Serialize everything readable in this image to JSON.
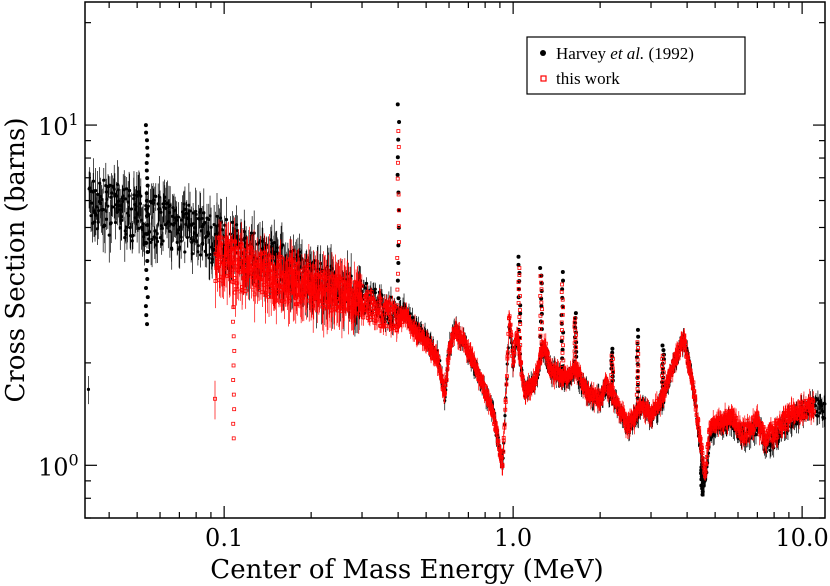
{
  "chart_data": {
    "type": "scatter",
    "title": "",
    "xlabel": "Center of Mass Energy (MeV)",
    "ylabel": "Cross Section (barns)",
    "xscale": "log",
    "yscale": "log",
    "xlim": [
      0.033,
      12.0
    ],
    "ylim": [
      0.7,
      23.0
    ],
    "xticks": [
      {
        "value": 0.1,
        "label": "0.1"
      },
      {
        "value": 1.0,
        "label": "1.0"
      },
      {
        "value": 10.0,
        "label": "10.0"
      }
    ],
    "yticks": [
      {
        "value": 1,
        "base": "10",
        "exp": "0"
      },
      {
        "value": 10,
        "base": "10",
        "exp": "1"
      }
    ],
    "legend": {
      "position": "top-right",
      "entries": [
        {
          "series": "harvey",
          "prefix": "Harvey ",
          "italic": "et al.",
          "suffix": " (1992)"
        },
        {
          "series": "this_work",
          "text": "this work"
        }
      ]
    },
    "series": [
      {
        "name": "Harvey et al. (1992)",
        "id": "harvey",
        "color": "#000000",
        "marker": "filled-circle",
        "x_range": [
          0.034,
          12.0
        ],
        "baseline": [
          [
            0.034,
            6.0
          ],
          [
            0.05,
            5.5
          ],
          [
            0.07,
            5.1
          ],
          [
            0.1,
            4.6
          ],
          [
            0.15,
            3.95
          ],
          [
            0.2,
            3.6
          ],
          [
            0.3,
            3.15
          ],
          [
            0.38,
            2.85
          ],
          [
            0.4,
            2.75
          ],
          [
            0.42,
            2.9
          ],
          [
            0.45,
            2.6
          ],
          [
            0.5,
            2.35
          ],
          [
            0.55,
            2.1
          ],
          [
            0.58,
            1.6
          ],
          [
            0.6,
            2.2
          ],
          [
            0.63,
            2.5
          ],
          [
            0.68,
            2.3
          ],
          [
            0.75,
            1.9
          ],
          [
            0.85,
            1.45
          ],
          [
            0.9,
            1.1
          ],
          [
            0.92,
            1.0
          ],
          [
            0.95,
            1.8
          ],
          [
            0.97,
            2.6
          ],
          [
            1.0,
            2.0
          ],
          [
            1.03,
            2.4
          ],
          [
            1.06,
            2.0
          ],
          [
            1.1,
            1.65
          ],
          [
            1.2,
            1.8
          ],
          [
            1.28,
            2.2
          ],
          [
            1.35,
            1.9
          ],
          [
            1.45,
            1.85
          ],
          [
            1.55,
            1.8
          ],
          [
            1.65,
            1.9
          ],
          [
            1.8,
            1.65
          ],
          [
            2.0,
            1.55
          ],
          [
            2.1,
            1.7
          ],
          [
            2.3,
            1.5
          ],
          [
            2.5,
            1.3
          ],
          [
            2.8,
            1.5
          ],
          [
            3.0,
            1.4
          ],
          [
            3.3,
            1.55
          ],
          [
            3.6,
            2.0
          ],
          [
            3.9,
            2.35
          ],
          [
            4.2,
            1.7
          ],
          [
            4.5,
            1.05
          ],
          [
            4.6,
            0.85
          ],
          [
            4.8,
            1.25
          ],
          [
            5.2,
            1.3
          ],
          [
            5.7,
            1.35
          ],
          [
            6.2,
            1.2
          ],
          [
            7.0,
            1.3
          ],
          [
            7.5,
            1.15
          ],
          [
            8.0,
            1.2
          ],
          [
            9.0,
            1.35
          ],
          [
            10.0,
            1.45
          ],
          [
            11.0,
            1.5
          ],
          [
            12.0,
            1.45
          ]
        ],
        "peaks": [
          {
            "x": 0.054,
            "y": 10.0
          },
          {
            "x": 0.054,
            "y": 2.6
          },
          {
            "x": 0.4,
            "y": 11.5
          },
          {
            "x": 1.05,
            "y": 4.1
          },
          {
            "x": 1.25,
            "y": 3.8
          },
          {
            "x": 1.48,
            "y": 3.7
          },
          {
            "x": 1.64,
            "y": 2.8
          },
          {
            "x": 2.2,
            "y": 2.2
          },
          {
            "x": 2.7,
            "y": 2.5
          },
          {
            "x": 3.3,
            "y": 2.25
          },
          {
            "x": 4.5,
            "y": 0.82
          }
        ]
      },
      {
        "name": "this work",
        "id": "this_work",
        "color": "#ff0000",
        "marker": "open-square",
        "x_range": [
          0.093,
          11.0
        ],
        "baseline": [
          [
            0.093,
            4.1
          ],
          [
            0.1,
            4.0
          ],
          [
            0.15,
            3.6
          ],
          [
            0.2,
            3.4
          ],
          [
            0.3,
            3.05
          ],
          [
            0.38,
            2.75
          ],
          [
            0.4,
            2.65
          ],
          [
            0.42,
            2.8
          ],
          [
            0.45,
            2.55
          ],
          [
            0.5,
            2.3
          ],
          [
            0.55,
            2.05
          ],
          [
            0.58,
            1.6
          ],
          [
            0.6,
            2.2
          ],
          [
            0.63,
            2.5
          ],
          [
            0.68,
            2.3
          ],
          [
            0.75,
            1.9
          ],
          [
            0.85,
            1.45
          ],
          [
            0.9,
            1.1
          ],
          [
            0.92,
            1.0
          ],
          [
            0.95,
            1.8
          ],
          [
            0.97,
            2.8
          ],
          [
            1.0,
            2.0
          ],
          [
            1.03,
            2.5
          ],
          [
            1.06,
            2.0
          ],
          [
            1.1,
            1.65
          ],
          [
            1.2,
            1.8
          ],
          [
            1.28,
            2.3
          ],
          [
            1.35,
            1.9
          ],
          [
            1.45,
            1.85
          ],
          [
            1.55,
            1.8
          ],
          [
            1.65,
            1.95
          ],
          [
            1.8,
            1.65
          ],
          [
            2.0,
            1.55
          ],
          [
            2.1,
            1.75
          ],
          [
            2.3,
            1.5
          ],
          [
            2.5,
            1.3
          ],
          [
            2.8,
            1.5
          ],
          [
            3.0,
            1.4
          ],
          [
            3.3,
            1.6
          ],
          [
            3.6,
            2.0
          ],
          [
            3.9,
            2.35
          ],
          [
            4.2,
            1.7
          ],
          [
            4.5,
            1.1
          ],
          [
            4.6,
            0.92
          ],
          [
            4.8,
            1.3
          ],
          [
            5.2,
            1.35
          ],
          [
            5.7,
            1.4
          ],
          [
            6.2,
            1.25
          ],
          [
            7.0,
            1.35
          ],
          [
            7.5,
            1.2
          ],
          [
            8.0,
            1.25
          ],
          [
            9.0,
            1.4
          ],
          [
            10.0,
            1.45
          ],
          [
            11.0,
            1.5
          ]
        ],
        "peaks": [
          {
            "x": 0.108,
            "y": 1.2
          },
          {
            "x": 0.4,
            "y": 9.6
          },
          {
            "x": 1.05,
            "y": 3.8
          },
          {
            "x": 1.25,
            "y": 3.6
          },
          {
            "x": 1.48,
            "y": 3.4
          },
          {
            "x": 1.64,
            "y": 2.7
          },
          {
            "x": 2.2,
            "y": 2.1
          },
          {
            "x": 2.7,
            "y": 2.3
          },
          {
            "x": 3.3,
            "y": 2.1
          }
        ]
      }
    ]
  }
}
